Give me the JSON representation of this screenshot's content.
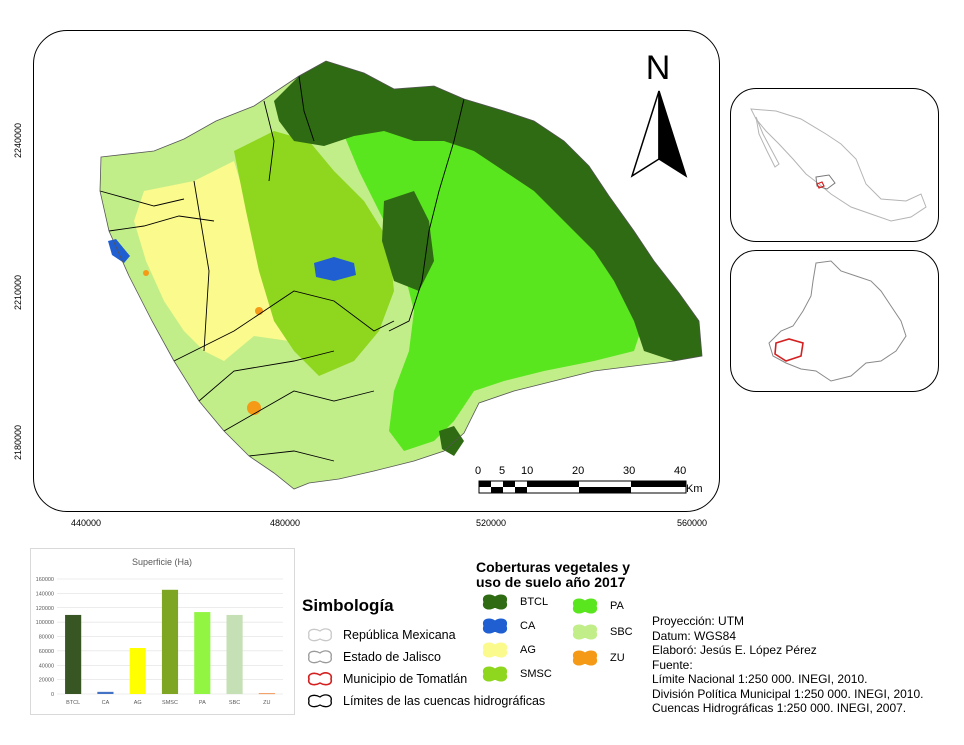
{
  "map": {
    "x_ticks": [
      "440000",
      "480000",
      "520000",
      "560000"
    ],
    "y_ticks": [
      "2240000",
      "2210000",
      "2180000"
    ],
    "north_label": "N",
    "scale_ticks": [
      "0",
      "5",
      "10",
      "20",
      "30",
      "40"
    ],
    "scale_unit": "Km"
  },
  "coverage_legend": {
    "title_line1": "Coberturas vegetales y",
    "title_line2": "uso de suelo año 2017",
    "items": [
      {
        "label": "BTCL",
        "color": "#2e6b12"
      },
      {
        "label": "CA",
        "color": "#1f5fd1"
      },
      {
        "label": "AG",
        "color": "#fbfa8c"
      },
      {
        "label": "SMSC",
        "color": "#8fd61f"
      },
      {
        "label": "PA",
        "color": "#5ae61e"
      },
      {
        "label": "SBC",
        "color": "#c2ee8a"
      },
      {
        "label": "ZU",
        "color": "#f59a16"
      }
    ]
  },
  "symbology": {
    "title": "Simbología",
    "items": [
      {
        "label": "República Mexicana",
        "stroke": "#c8c8c8"
      },
      {
        "label": "Estado de Jalisco",
        "stroke": "#9a9a9a"
      },
      {
        "label": "Municipio de Tomatlán",
        "stroke": "#d42020"
      },
      {
        "label": "Límites de las cuencas hidrográficas",
        "stroke": "#000000"
      }
    ]
  },
  "metadata": [
    "Proyección: UTM",
    "Datum: WGS84",
    "Elaboró: Jesús E. López Pérez",
    "Fuente:",
    "Límite Nacional 1:250 000. INEGI, 2010.",
    "División Política Municipal 1:250 000. INEGI, 2010.",
    "Cuencas Hidrográficas 1:250 000. INEGI, 2007."
  ],
  "chart_data": {
    "type": "bar",
    "title": "Superficie (Ha)",
    "categories": [
      "BTCL",
      "CA",
      "AG",
      "SMSC",
      "PA",
      "SBC",
      "ZU"
    ],
    "values": [
      110000,
      3000,
      64000,
      145000,
      114000,
      110000,
      1000
    ],
    "colors": [
      "#375623",
      "#4472c4",
      "#ffff00",
      "#7ea623",
      "#92f542",
      "#c5e0b4",
      "#ed7d31"
    ],
    "yticks": [
      "0",
      "20000",
      "40000",
      "60000",
      "80000",
      "100000",
      "120000",
      "140000",
      "160000"
    ],
    "ylim": [
      0,
      160000
    ],
    "grid": true
  }
}
